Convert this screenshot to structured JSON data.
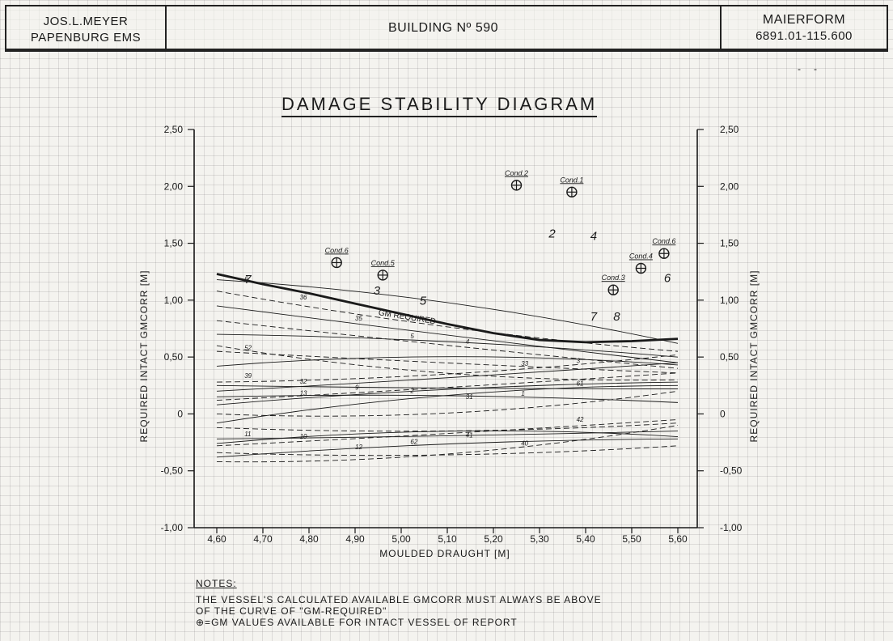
{
  "header": {
    "left_line1": "JOS.L.MEYER",
    "left_line2": "PAPENBURG EMS",
    "center": "BUILDING Nº 590",
    "right_line1": "MAIERFORM",
    "right_line2": "6891.01-115.600"
  },
  "corner_marks": [
    "-",
    "-"
  ],
  "notes": {
    "heading": "NOTES:",
    "line1": "THE VESSEL'S CALCULATED AVAILABLE GMCORR MUST ALWAYS BE ABOVE",
    "line2": "OF THE CURVE OF \"GM-REQUIRED\"",
    "line3": "⊕=GM VALUES AVAILABLE FOR INTACT VESSEL OF REPORT"
  },
  "chart_data": {
    "type": "line",
    "title": "DAMAGE STABILITY DIAGRAM",
    "xlabel": "MOULDED DRAUGHT [M]",
    "ylabel": "REQUIRED INTACT GMCORR [M]",
    "xlim": [
      4.56,
      5.62
    ],
    "ylim": [
      -1.0,
      2.5
    ],
    "x_ticks": [
      4.6,
      4.7,
      4.8,
      4.9,
      5.0,
      5.1,
      5.2,
      5.3,
      5.4,
      5.5,
      5.6
    ],
    "x_tick_labels": [
      "4,60",
      "4,70",
      "4,80",
      "4,90",
      "5,00",
      "5,10",
      "5,20",
      "5,30",
      "5,40",
      "5,50",
      "5,60"
    ],
    "y_ticks": [
      2.5,
      2.0,
      1.5,
      1.0,
      0.5,
      0.0,
      -0.5,
      -1.0
    ],
    "y_tick_labels": [
      "2,50",
      "2,00",
      "1,50",
      "1,00",
      "0,50",
      "0",
      "-0,50",
      "-1,00"
    ],
    "grid": true,
    "required_curve": {
      "name": "GM REQUIRED",
      "x": [
        4.6,
        4.7,
        4.8,
        4.9,
        5.0,
        5.1,
        5.2,
        5.3,
        5.4,
        5.5,
        5.6
      ],
      "y": [
        1.23,
        1.14,
        1.06,
        0.97,
        0.88,
        0.79,
        0.71,
        0.65,
        0.63,
        0.64,
        0.66
      ]
    },
    "damage_curves": [
      {
        "label": "6",
        "x": [
          4.6,
          5.6
        ],
        "y": [
          1.18,
          0.62
        ]
      },
      {
        "label": "36",
        "x": [
          4.6,
          5.6
        ],
        "y": [
          1.08,
          0.55
        ]
      },
      {
        "label": "35",
        "x": [
          4.6,
          5.6
        ],
        "y": [
          0.95,
          0.45
        ]
      },
      {
        "label": "5",
        "x": [
          4.6,
          5.6
        ],
        "y": [
          0.82,
          0.4
        ]
      },
      {
        "label": "4",
        "x": [
          4.6,
          5.6
        ],
        "y": [
          0.7,
          0.5
        ]
      },
      {
        "label": "33",
        "x": [
          4.6,
          5.6
        ],
        "y": [
          0.6,
          0.3
        ]
      },
      {
        "label": "3",
        "x": [
          4.6,
          5.6
        ],
        "y": [
          0.42,
          0.43
        ]
      },
      {
        "label": "39",
        "x": [
          4.6,
          5.6
        ],
        "y": [
          0.28,
          0.52
        ]
      },
      {
        "label": "32",
        "x": [
          4.6,
          5.6
        ],
        "y": [
          0.2,
          0.45
        ]
      },
      {
        "label": "9",
        "x": [
          4.6,
          5.6
        ],
        "y": [
          0.12,
          0.36
        ]
      },
      {
        "label": "2",
        "x": [
          4.6,
          5.6
        ],
        "y": [
          0.08,
          0.28
        ]
      },
      {
        "label": "31",
        "x": [
          4.6,
          5.6
        ],
        "y": [
          0.0,
          0.2
        ]
      },
      {
        "label": "1",
        "x": [
          4.6,
          5.6
        ],
        "y": [
          -0.08,
          0.25
        ]
      },
      {
        "label": "42",
        "x": [
          4.6,
          5.6
        ],
        "y": [
          -0.12,
          -0.08
        ]
      },
      {
        "label": "11",
        "x": [
          4.6,
          5.6
        ],
        "y": [
          -0.22,
          -0.15
        ]
      },
      {
        "label": "10",
        "x": [
          4.6,
          5.6
        ],
        "y": [
          -0.28,
          -0.05
        ]
      },
      {
        "label": "12",
        "x": [
          4.6,
          5.6
        ],
        "y": [
          -0.38,
          -0.22
        ]
      },
      {
        "label": "62",
        "x": [
          4.6,
          5.6
        ],
        "y": [
          -0.42,
          -0.1
        ]
      },
      {
        "label": "41",
        "x": [
          4.6,
          5.6
        ],
        "y": [
          -0.26,
          -0.2
        ]
      },
      {
        "label": "40",
        "x": [
          4.6,
          5.6
        ],
        "y": [
          -0.34,
          -0.28
        ]
      },
      {
        "label": "61",
        "x": [
          4.6,
          5.6
        ],
        "y": [
          0.25,
          0.22
        ]
      },
      {
        "label": "52",
        "x": [
          4.6,
          5.6
        ],
        "y": [
          0.55,
          0.36
        ]
      },
      {
        "label": "13",
        "x": [
          4.6,
          5.6
        ],
        "y": [
          0.15,
          0.1
        ]
      }
    ],
    "intact_points": [
      {
        "label": "Cond.6",
        "x": 4.86,
        "y": 1.33
      },
      {
        "label": "Cond.5",
        "x": 4.96,
        "y": 1.22
      },
      {
        "label": "Cond.2",
        "x": 5.25,
        "y": 2.01
      },
      {
        "label": "Cond.1",
        "x": 5.37,
        "y": 1.95
      },
      {
        "label": "Cond.3",
        "x": 5.46,
        "y": 1.09
      },
      {
        "label": "Cond.4",
        "x": 5.52,
        "y": 1.28
      },
      {
        "label": "Cond.6",
        "x": 5.57,
        "y": 1.41
      }
    ],
    "annotations": [
      {
        "text": "2",
        "x": 5.32,
        "y": 1.55
      },
      {
        "text": "4",
        "x": 5.41,
        "y": 1.53
      },
      {
        "text": "3",
        "x": 4.94,
        "y": 1.05
      },
      {
        "text": "5",
        "x": 5.04,
        "y": 0.96
      },
      {
        "text": "6",
        "x": 5.57,
        "y": 1.16
      },
      {
        "text": "7",
        "x": 5.41,
        "y": 0.82
      },
      {
        "text": "8",
        "x": 5.46,
        "y": 0.82
      },
      {
        "text": "GM REQUIRED",
        "x": 4.95,
        "y": 0.87
      },
      {
        "text": "7",
        "x": 4.66,
        "y": 1.15
      }
    ],
    "colors": {
      "ink": "#1a1a1a",
      "paper": "#f4f3ef"
    }
  }
}
